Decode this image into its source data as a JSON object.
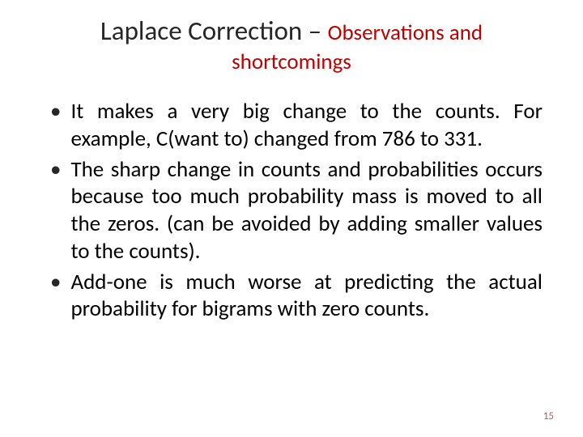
{
  "slide": {
    "title_main": "Laplace Correction – ",
    "title_sub": "Observations and",
    "title_sub_line2": "shortcomings",
    "bullets": [
      "It makes a very big change to the counts. For example, C(want to) changed from 786 to 331.",
      "The sharp change in counts and probabilities occurs because too much probability mass is moved to all the zeros. (can be avoided by adding smaller values to the counts).",
      "Add-one is much worse at predicting the actual probability for bigrams with zero counts."
    ],
    "page_number": "15"
  },
  "styling": {
    "background_color": "#ffffff",
    "title_main_color": "#262626",
    "title_sub_color": "#c00000",
    "bullet_text_color": "#000000",
    "page_number_color": "#9c6a6a",
    "title_main_fontsize": 33,
    "title_sub_fontsize": 27,
    "body_fontsize": 27,
    "page_number_fontsize": 13,
    "font_family": "Calibri",
    "bullet_marker": "•",
    "text_align": "justify"
  }
}
